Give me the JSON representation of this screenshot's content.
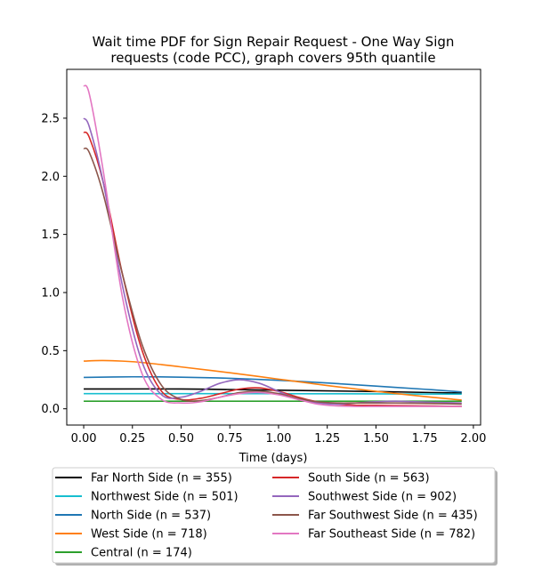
{
  "chart_data": {
    "type": "line",
    "title": [
      "Wait time PDF for Sign Repair Request - One Way Sign",
      "requests (code PCC), graph covers 95th quantile"
    ],
    "xlabel": "Time (days)",
    "ylabel": "",
    "xlim": [
      -0.087,
      2.037
    ],
    "ylim": [
      -0.14,
      2.92
    ],
    "xticks": [
      0.0,
      0.25,
      0.5,
      0.75,
      1.0,
      1.25,
      1.5,
      1.75,
      2.0
    ],
    "xtick_labels": [
      "0.00",
      "0.25",
      "0.50",
      "0.75",
      "1.00",
      "1.25",
      "1.50",
      "1.75",
      "2.00"
    ],
    "yticks": [
      0.0,
      0.5,
      1.0,
      1.5,
      2.0,
      2.5
    ],
    "ytick_labels": [
      "0.0",
      "0.5",
      "1.0",
      "1.5",
      "2.0",
      "2.5"
    ],
    "grid": false,
    "legend_position": "below plot, two columns",
    "series": [
      {
        "name": "Far North Side (n = 355)",
        "color": "#000000",
        "x": [
          0.0,
          0.5,
          1.0,
          1.5,
          1.94
        ],
        "y": [
          0.17,
          0.17,
          0.16,
          0.148,
          0.135
        ]
      },
      {
        "name": "Northwest Side (n = 501)",
        "color": "#17becf",
        "x": [
          0.0,
          0.5,
          1.0,
          1.5,
          1.94
        ],
        "y": [
          0.13,
          0.13,
          0.13,
          0.128,
          0.126
        ]
      },
      {
        "name": "North Side (n = 537)",
        "color": "#1f77b4",
        "x": [
          0.0,
          0.25,
          0.5,
          0.75,
          1.0,
          1.25,
          1.5,
          1.75,
          1.94
        ],
        "y": [
          0.27,
          0.275,
          0.272,
          0.262,
          0.245,
          0.222,
          0.195,
          0.168,
          0.145
        ]
      },
      {
        "name": "West Side (n = 718)",
        "color": "#ff7f0e",
        "x": [
          0.0,
          0.1,
          0.25,
          0.4,
          0.5,
          0.75,
          1.0,
          1.25,
          1.5,
          1.75,
          1.94
        ],
        "y": [
          0.41,
          0.415,
          0.405,
          0.38,
          0.36,
          0.31,
          0.255,
          0.2,
          0.15,
          0.105,
          0.075
        ]
      },
      {
        "name": "Central (n = 174)",
        "color": "#2ca02c",
        "x": [
          0.0,
          1.94
        ],
        "y": [
          0.065,
          0.065
        ]
      },
      {
        "name": "South Side (n = 563)",
        "color": "#d62728",
        "x": [
          0.0,
          0.03,
          0.1,
          0.2,
          0.3,
          0.4,
          0.5,
          0.6,
          0.7,
          0.8,
          0.9,
          1.0,
          1.1,
          1.2,
          1.3,
          1.4,
          1.5,
          1.6,
          1.7,
          1.8,
          1.94
        ],
        "y": [
          2.38,
          2.33,
          1.95,
          1.15,
          0.5,
          0.15,
          0.08,
          0.09,
          0.13,
          0.17,
          0.18,
          0.15,
          0.1,
          0.06,
          0.04,
          0.03,
          0.03,
          0.028,
          0.026,
          0.024,
          0.02
        ]
      },
      {
        "name": "Southwest Side (n = 902)",
        "color": "#9467bd",
        "x": [
          0.0,
          0.03,
          0.1,
          0.2,
          0.3,
          0.4,
          0.5,
          0.6,
          0.7,
          0.8,
          0.9,
          1.0,
          1.1,
          1.2,
          1.3,
          1.4,
          1.5,
          1.6,
          1.7,
          1.8,
          1.94
        ],
        "y": [
          2.5,
          2.42,
          1.95,
          1.05,
          0.4,
          0.12,
          0.1,
          0.15,
          0.22,
          0.25,
          0.22,
          0.15,
          0.08,
          0.05,
          0.04,
          0.05,
          0.06,
          0.065,
          0.06,
          0.055,
          0.05
        ]
      },
      {
        "name": "Far Southwest Side (n = 435)",
        "color": "#8c564b",
        "x": [
          0.0,
          0.03,
          0.1,
          0.2,
          0.3,
          0.4,
          0.5,
          0.6,
          0.7,
          0.8,
          0.9,
          1.0,
          1.1,
          1.2,
          1.3,
          1.4,
          1.5,
          1.6,
          1.7,
          1.8,
          1.94
        ],
        "y": [
          2.24,
          2.2,
          1.85,
          1.15,
          0.55,
          0.2,
          0.08,
          0.07,
          0.1,
          0.14,
          0.15,
          0.13,
          0.09,
          0.06,
          0.05,
          0.05,
          0.05,
          0.05,
          0.048,
          0.045,
          0.04
        ]
      },
      {
        "name": "Far Southeast Side (n = 782)",
        "color": "#e377c2",
        "x": [
          0.0,
          0.03,
          0.1,
          0.2,
          0.3,
          0.4,
          0.5,
          0.6,
          0.7,
          0.8,
          0.9,
          1.0,
          1.1,
          1.2,
          1.3,
          1.4,
          1.5,
          1.6,
          1.7,
          1.8,
          1.94
        ],
        "y": [
          2.78,
          2.7,
          2.05,
          0.95,
          0.3,
          0.08,
          0.05,
          0.06,
          0.1,
          0.13,
          0.14,
          0.12,
          0.08,
          0.04,
          0.025,
          0.02,
          0.02,
          0.02,
          0.02,
          0.02,
          0.02
        ]
      }
    ]
  }
}
